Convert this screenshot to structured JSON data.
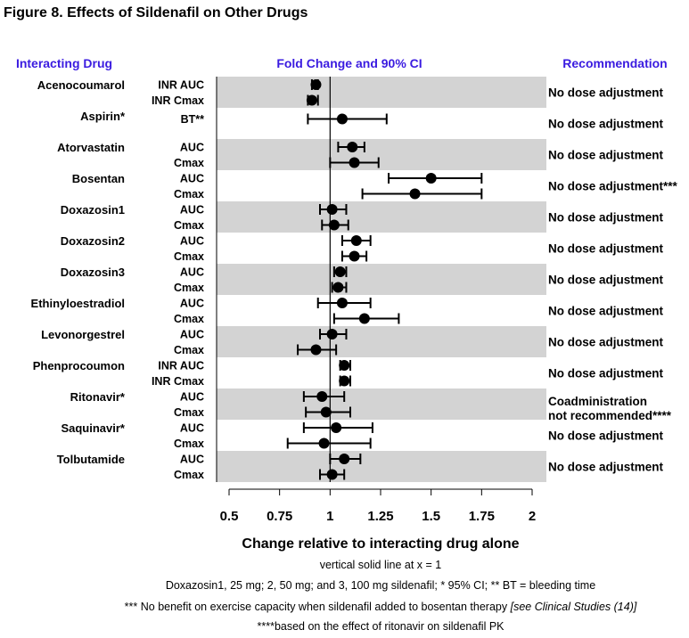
{
  "figure_title": "Figure 8. Effects of Sildenafil on Other Drugs",
  "chart_data": {
    "type": "forest",
    "headers": {
      "drug": "Interacting Drug",
      "plot": "Fold Change and 90% CI",
      "recommendation": "Recommendation"
    },
    "xlabel": "Change relative to interacting drug alone",
    "xlim": [
      0.5,
      2.0
    ],
    "xticks": [
      0.5,
      0.75,
      1,
      1.25,
      1.5,
      1.75,
      2
    ],
    "xtick_labels": [
      "0.5",
      "0.75",
      "1",
      "1.25",
      "1.5",
      "1.75",
      "2"
    ],
    "reference_line_x": 1,
    "colors": {
      "band": "#d3d3d3",
      "header_text": "#3a1be0",
      "marker": "#000000"
    },
    "groups": [
      {
        "drug": "Acenocoumarol",
        "recommendation": "No dose adjustment",
        "rows": [
          {
            "measure": "INR AUC",
            "estimate": 0.93,
            "lower": 0.91,
            "upper": 0.94
          },
          {
            "measure": "INR Cmax",
            "estimate": 0.91,
            "lower": 0.89,
            "upper": 0.94
          }
        ]
      },
      {
        "drug": "Aspirin*",
        "recommendation": "No dose adjustment",
        "rows": [
          {
            "measure": "BT**",
            "estimate": 1.06,
            "lower": 0.89,
            "upper": 1.28
          }
        ]
      },
      {
        "drug": "Atorvastatin",
        "recommendation": "No dose adjustment",
        "rows": [
          {
            "measure": "AUC",
            "estimate": 1.11,
            "lower": 1.04,
            "upper": 1.17
          },
          {
            "measure": "Cmax",
            "estimate": 1.12,
            "lower": 1.0,
            "upper": 1.24
          }
        ]
      },
      {
        "drug": "Bosentan",
        "recommendation": "No dose adjustment***",
        "rows": [
          {
            "measure": "AUC",
            "estimate": 1.5,
            "lower": 1.29,
            "upper": 1.75
          },
          {
            "measure": "Cmax",
            "estimate": 1.42,
            "lower": 1.16,
            "upper": 1.75
          }
        ]
      },
      {
        "drug": "Doxazosin1",
        "recommendation": "No dose adjustment",
        "rows": [
          {
            "measure": "AUC",
            "estimate": 1.01,
            "lower": 0.95,
            "upper": 1.08
          },
          {
            "measure": "Cmax",
            "estimate": 1.02,
            "lower": 0.96,
            "upper": 1.09
          }
        ]
      },
      {
        "drug": "Doxazosin2",
        "recommendation": "No dose adjustment",
        "rows": [
          {
            "measure": "AUC",
            "estimate": 1.13,
            "lower": 1.06,
            "upper": 1.2
          },
          {
            "measure": "Cmax",
            "estimate": 1.12,
            "lower": 1.06,
            "upper": 1.18
          }
        ]
      },
      {
        "drug": "Doxazosin3",
        "recommendation": "No dose adjustment",
        "rows": [
          {
            "measure": "AUC",
            "estimate": 1.05,
            "lower": 1.02,
            "upper": 1.08
          },
          {
            "measure": "Cmax",
            "estimate": 1.04,
            "lower": 1.01,
            "upper": 1.08
          }
        ]
      },
      {
        "drug": "Ethinyloestradiol",
        "recommendation": "No dose adjustment",
        "rows": [
          {
            "measure": "AUC",
            "estimate": 1.06,
            "lower": 0.94,
            "upper": 1.2
          },
          {
            "measure": "Cmax",
            "estimate": 1.17,
            "lower": 1.02,
            "upper": 1.34
          }
        ]
      },
      {
        "drug": "Levonorgestrel",
        "recommendation": "No dose adjustment",
        "rows": [
          {
            "measure": "AUC",
            "estimate": 1.01,
            "lower": 0.95,
            "upper": 1.08
          },
          {
            "measure": "Cmax",
            "estimate": 0.93,
            "lower": 0.84,
            "upper": 1.03
          }
        ]
      },
      {
        "drug": "Phenprocoumon",
        "recommendation": "No dose adjustment",
        "rows": [
          {
            "measure": "INR AUC",
            "estimate": 1.07,
            "lower": 1.05,
            "upper": 1.1
          },
          {
            "measure": "INR Cmax",
            "estimate": 1.07,
            "lower": 1.05,
            "upper": 1.1
          }
        ]
      },
      {
        "drug": "Ritonavir*",
        "recommendation": "Coadministration not recommended****",
        "rows": [
          {
            "measure": "AUC",
            "estimate": 0.96,
            "lower": 0.87,
            "upper": 1.07
          },
          {
            "measure": "Cmax",
            "estimate": 0.98,
            "lower": 0.88,
            "upper": 1.1
          }
        ]
      },
      {
        "drug": "Saquinavir*",
        "recommendation": "No dose adjustment",
        "rows": [
          {
            "measure": "AUC",
            "estimate": 1.03,
            "lower": 0.87,
            "upper": 1.21
          },
          {
            "measure": "Cmax",
            "estimate": 0.97,
            "lower": 0.79,
            "upper": 1.2
          }
        ]
      },
      {
        "drug": "Tolbutamide",
        "recommendation": "No dose adjustment",
        "rows": [
          {
            "measure": "AUC",
            "estimate": 1.07,
            "lower": 1.0,
            "upper": 1.15
          },
          {
            "measure": "Cmax",
            "estimate": 1.01,
            "lower": 0.95,
            "upper": 1.07
          }
        ]
      }
    ],
    "footnotes": [
      "vertical solid line at x = 1",
      "Doxazosin1, 25 mg; 2, 50 mg; and 3, 100 mg sildenafil; * 95% CI; ** BT = bleeding time",
      "*** No benefit on exercise capacity when sildenafil added to bosentan therapy  [see Clinical Studies (14)]",
      "****based on the effect of ritonavir on sildenafil PK"
    ]
  }
}
